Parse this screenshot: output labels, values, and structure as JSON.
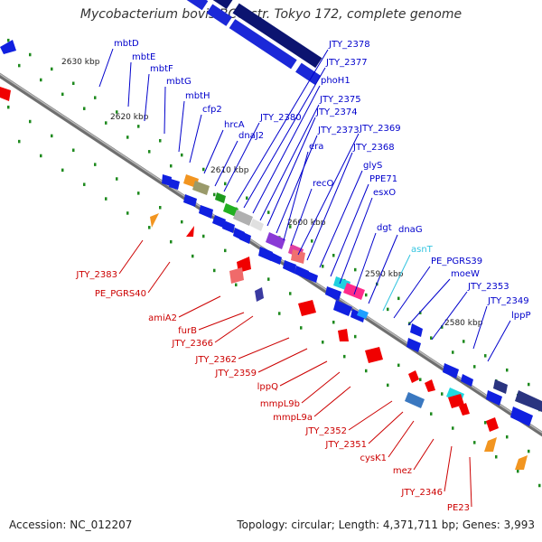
{
  "title": "Mycobacterium bovis BCG str. Tokyo 172, complete genome",
  "footer": {
    "accession": "Accession: NC_012207",
    "summary": "Topology: circular; Length: 4,371,711 bp; Genes: 3,993"
  },
  "colors": {
    "backbone": "#8c8c8c",
    "forward_strand": "#0a1fd6",
    "reverse_strand": "#f00000",
    "forward_label": "#0000cc",
    "reverse_label": "#cc0000",
    "tick_dots": "#1e8a1e",
    "ruler_text": "#222222"
  },
  "ruler": [
    "2630 kbp",
    "2620 kbp",
    "2610 kbp",
    "2600 kbp",
    "2590 kbp",
    "2580 kbp"
  ],
  "forward_labels": [
    "mbtD",
    "mbtE",
    "mbtF",
    "mbtG",
    "mbtH",
    "cfp2",
    "hrcA",
    "dnaJ2",
    "JTY_2380",
    "JTY_2378",
    "JTY_2377",
    "phoH1",
    "JTY_2375",
    "JTY_2374",
    "JTY_2373",
    "era",
    "recO",
    "JTY_2369",
    "JTY_2368",
    "glyS",
    "PPE71",
    "esxO",
    "dgt",
    "dnaG",
    "asnT",
    "PE_PGRS39",
    "moeW",
    "JTY_2353",
    "JTY_2349",
    "lppP"
  ],
  "reverse_labels": [
    "JTY_2383",
    "PE_PGRS40",
    "amiA2",
    "furB",
    "JTY_2366",
    "JTY_2362",
    "JTY_2359",
    "lppQ",
    "mmpL9b",
    "mmpL9a",
    "JTY_2352",
    "JTY_2351",
    "cysK1",
    "mez",
    "JTY_2346",
    "PE23"
  ]
}
